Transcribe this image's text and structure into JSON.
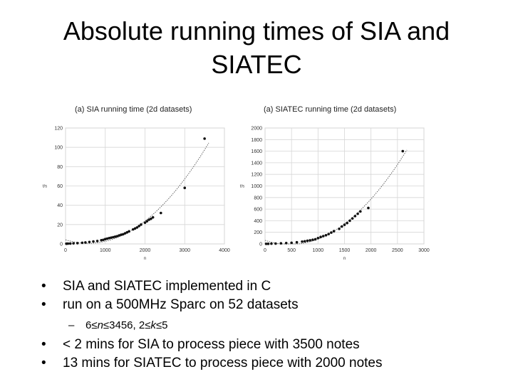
{
  "slide": {
    "title_line1": "Absolute running times of SIA and",
    "title_line2": "SIATEC",
    "bullets": [
      "SIA and SIATEC implemented in C",
      "run on a 500MHz Sparc on 52 datasets"
    ],
    "sub_bullet": {
      "parts": [
        "6≤",
        "n",
        "≤3456, 2≤",
        "k",
        "≤5"
      ]
    },
    "bullets2": [
      "< 2 mins for SIA to process piece with 3500 notes",
      "13 mins for SIATEC to process piece with 2000 notes"
    ],
    "bullet_symbol": "•",
    "sub_symbol": "–"
  },
  "chart_data": [
    {
      "type": "scatter",
      "title": "(a) SIA running time (2d datasets)",
      "xlabel": "n",
      "ylabel": "t/s",
      "xlim": [
        0,
        4000
      ],
      "ylim": [
        0,
        120
      ],
      "xticks": [
        0,
        1000,
        2000,
        3000,
        4000
      ],
      "yticks": [
        0,
        20,
        40,
        60,
        80,
        100,
        120
      ],
      "grid": true,
      "trend": "quadratic fit (dotted)",
      "points": [
        [
          20,
          0.2
        ],
        [
          60,
          0.3
        ],
        [
          120,
          0.4
        ],
        [
          200,
          0.6
        ],
        [
          300,
          0.8
        ],
        [
          420,
          1.2
        ],
        [
          500,
          1.5
        ],
        [
          600,
          2
        ],
        [
          700,
          2.5
        ],
        [
          800,
          3
        ],
        [
          900,
          3.8
        ],
        [
          950,
          4.2
        ],
        [
          1000,
          5
        ],
        [
          1050,
          5.5
        ],
        [
          1100,
          6
        ],
        [
          1150,
          6.5
        ],
        [
          1200,
          7
        ],
        [
          1250,
          7.5
        ],
        [
          1300,
          8
        ],
        [
          1350,
          8.8
        ],
        [
          1400,
          9.5
        ],
        [
          1450,
          10
        ],
        [
          1500,
          11
        ],
        [
          1550,
          12
        ],
        [
          1600,
          13
        ],
        [
          1700,
          15
        ],
        [
          1750,
          16
        ],
        [
          1800,
          17
        ],
        [
          1850,
          18.5
        ],
        [
          1900,
          20
        ],
        [
          2000,
          22
        ],
        [
          2050,
          23.5
        ],
        [
          2100,
          25
        ],
        [
          2150,
          26
        ],
        [
          2200,
          27.5
        ],
        [
          2400,
          32
        ],
        [
          3000,
          58
        ],
        [
          3500,
          109
        ]
      ]
    },
    {
      "type": "scatter",
      "title": "(a) SIATEC running time (2d datasets)",
      "xlabel": "n",
      "ylabel": "t/s",
      "xlim": [
        0,
        3000
      ],
      "ylim": [
        0,
        2000
      ],
      "xticks": [
        0,
        500,
        1000,
        1500,
        2000,
        2500,
        3000
      ],
      "yticks": [
        0,
        200,
        400,
        600,
        800,
        1000,
        1200,
        1400,
        1600,
        1800,
        2000
      ],
      "grid": true,
      "trend": "polynomial fit (dotted)",
      "points": [
        [
          20,
          1
        ],
        [
          60,
          2
        ],
        [
          120,
          4
        ],
        [
          200,
          6
        ],
        [
          300,
          10
        ],
        [
          400,
          14
        ],
        [
          500,
          20
        ],
        [
          600,
          28
        ],
        [
          700,
          40
        ],
        [
          750,
          45
        ],
        [
          800,
          55
        ],
        [
          850,
          62
        ],
        [
          900,
          72
        ],
        [
          950,
          80
        ],
        [
          1000,
          100
        ],
        [
          1050,
          120
        ],
        [
          1100,
          135
        ],
        [
          1150,
          150
        ],
        [
          1200,
          170
        ],
        [
          1250,
          195
        ],
        [
          1300,
          220
        ],
        [
          1400,
          260
        ],
        [
          1450,
          300
        ],
        [
          1500,
          330
        ],
        [
          1550,
          360
        ],
        [
          1600,
          400
        ],
        [
          1650,
          440
        ],
        [
          1700,
          480
        ],
        [
          1750,
          520
        ],
        [
          1800,
          560
        ],
        [
          1950,
          620
        ],
        [
          2600,
          1600
        ]
      ]
    }
  ]
}
